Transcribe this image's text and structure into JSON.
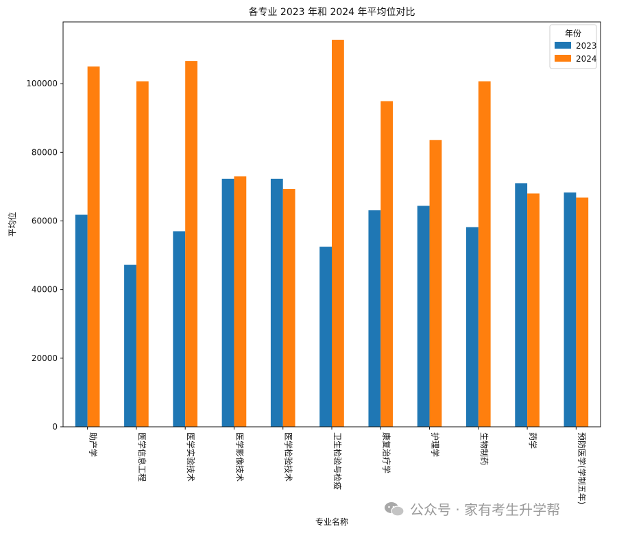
{
  "chart_data": {
    "type": "bar",
    "title": "各专业 2023 年和 2024 年平均位对比",
    "xlabel": "专业名称",
    "ylabel": "平均位",
    "ylim": [
      0,
      118000
    ],
    "yticks": [
      0,
      20000,
      40000,
      60000,
      80000,
      100000
    ],
    "categories": [
      "助产学",
      "医学信息工程",
      "医学实验技术",
      "医学影像技术",
      "医学检验技术",
      "卫生检验与检疫",
      "康复治疗学",
      "护理学",
      "生物制药",
      "药学",
      "预防医学(学制五年)"
    ],
    "legend": {
      "title": "年份",
      "position": "top-right"
    },
    "series": [
      {
        "name": "2023",
        "color": "#1f77b4",
        "values": [
          61800,
          47200,
          57000,
          72300,
          72300,
          52500,
          63100,
          64400,
          58200,
          71000,
          68300
        ]
      },
      {
        "name": "2024",
        "color": "#ff7f0e",
        "values": [
          105000,
          100700,
          106600,
          73000,
          69300,
          112800,
          94900,
          83600,
          100700,
          68000,
          66800
        ]
      }
    ],
    "grid": false
  },
  "watermark": {
    "text": "公众号 · 家有考生升学帮",
    "icon": "wechat-icon"
  }
}
